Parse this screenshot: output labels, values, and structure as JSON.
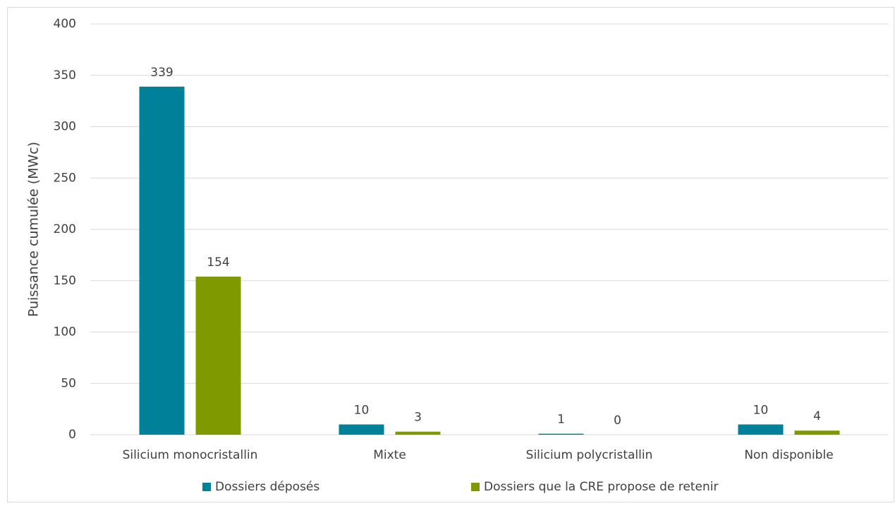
{
  "chart_data": {
    "type": "bar",
    "y_label": "Puissance cumulée (MWc)",
    "categories": [
      "Silicium monocristallin",
      "Mixte",
      "Silicium polycristallin",
      "Non disponible"
    ],
    "series": [
      {
        "name": "Dossiers déposés",
        "color": "#00819a",
        "values": [
          339,
          10,
          1,
          10
        ]
      },
      {
        "name": "Dossiers que la CRE propose de retenir",
        "color": "#7f9900",
        "values": [
          154,
          3,
          0,
          4
        ]
      }
    ],
    "ylim": [
      0,
      400
    ],
    "yticks": [
      0,
      50,
      100,
      150,
      200,
      250,
      300,
      350,
      400
    ],
    "grid": true,
    "legend": "bottom"
  }
}
